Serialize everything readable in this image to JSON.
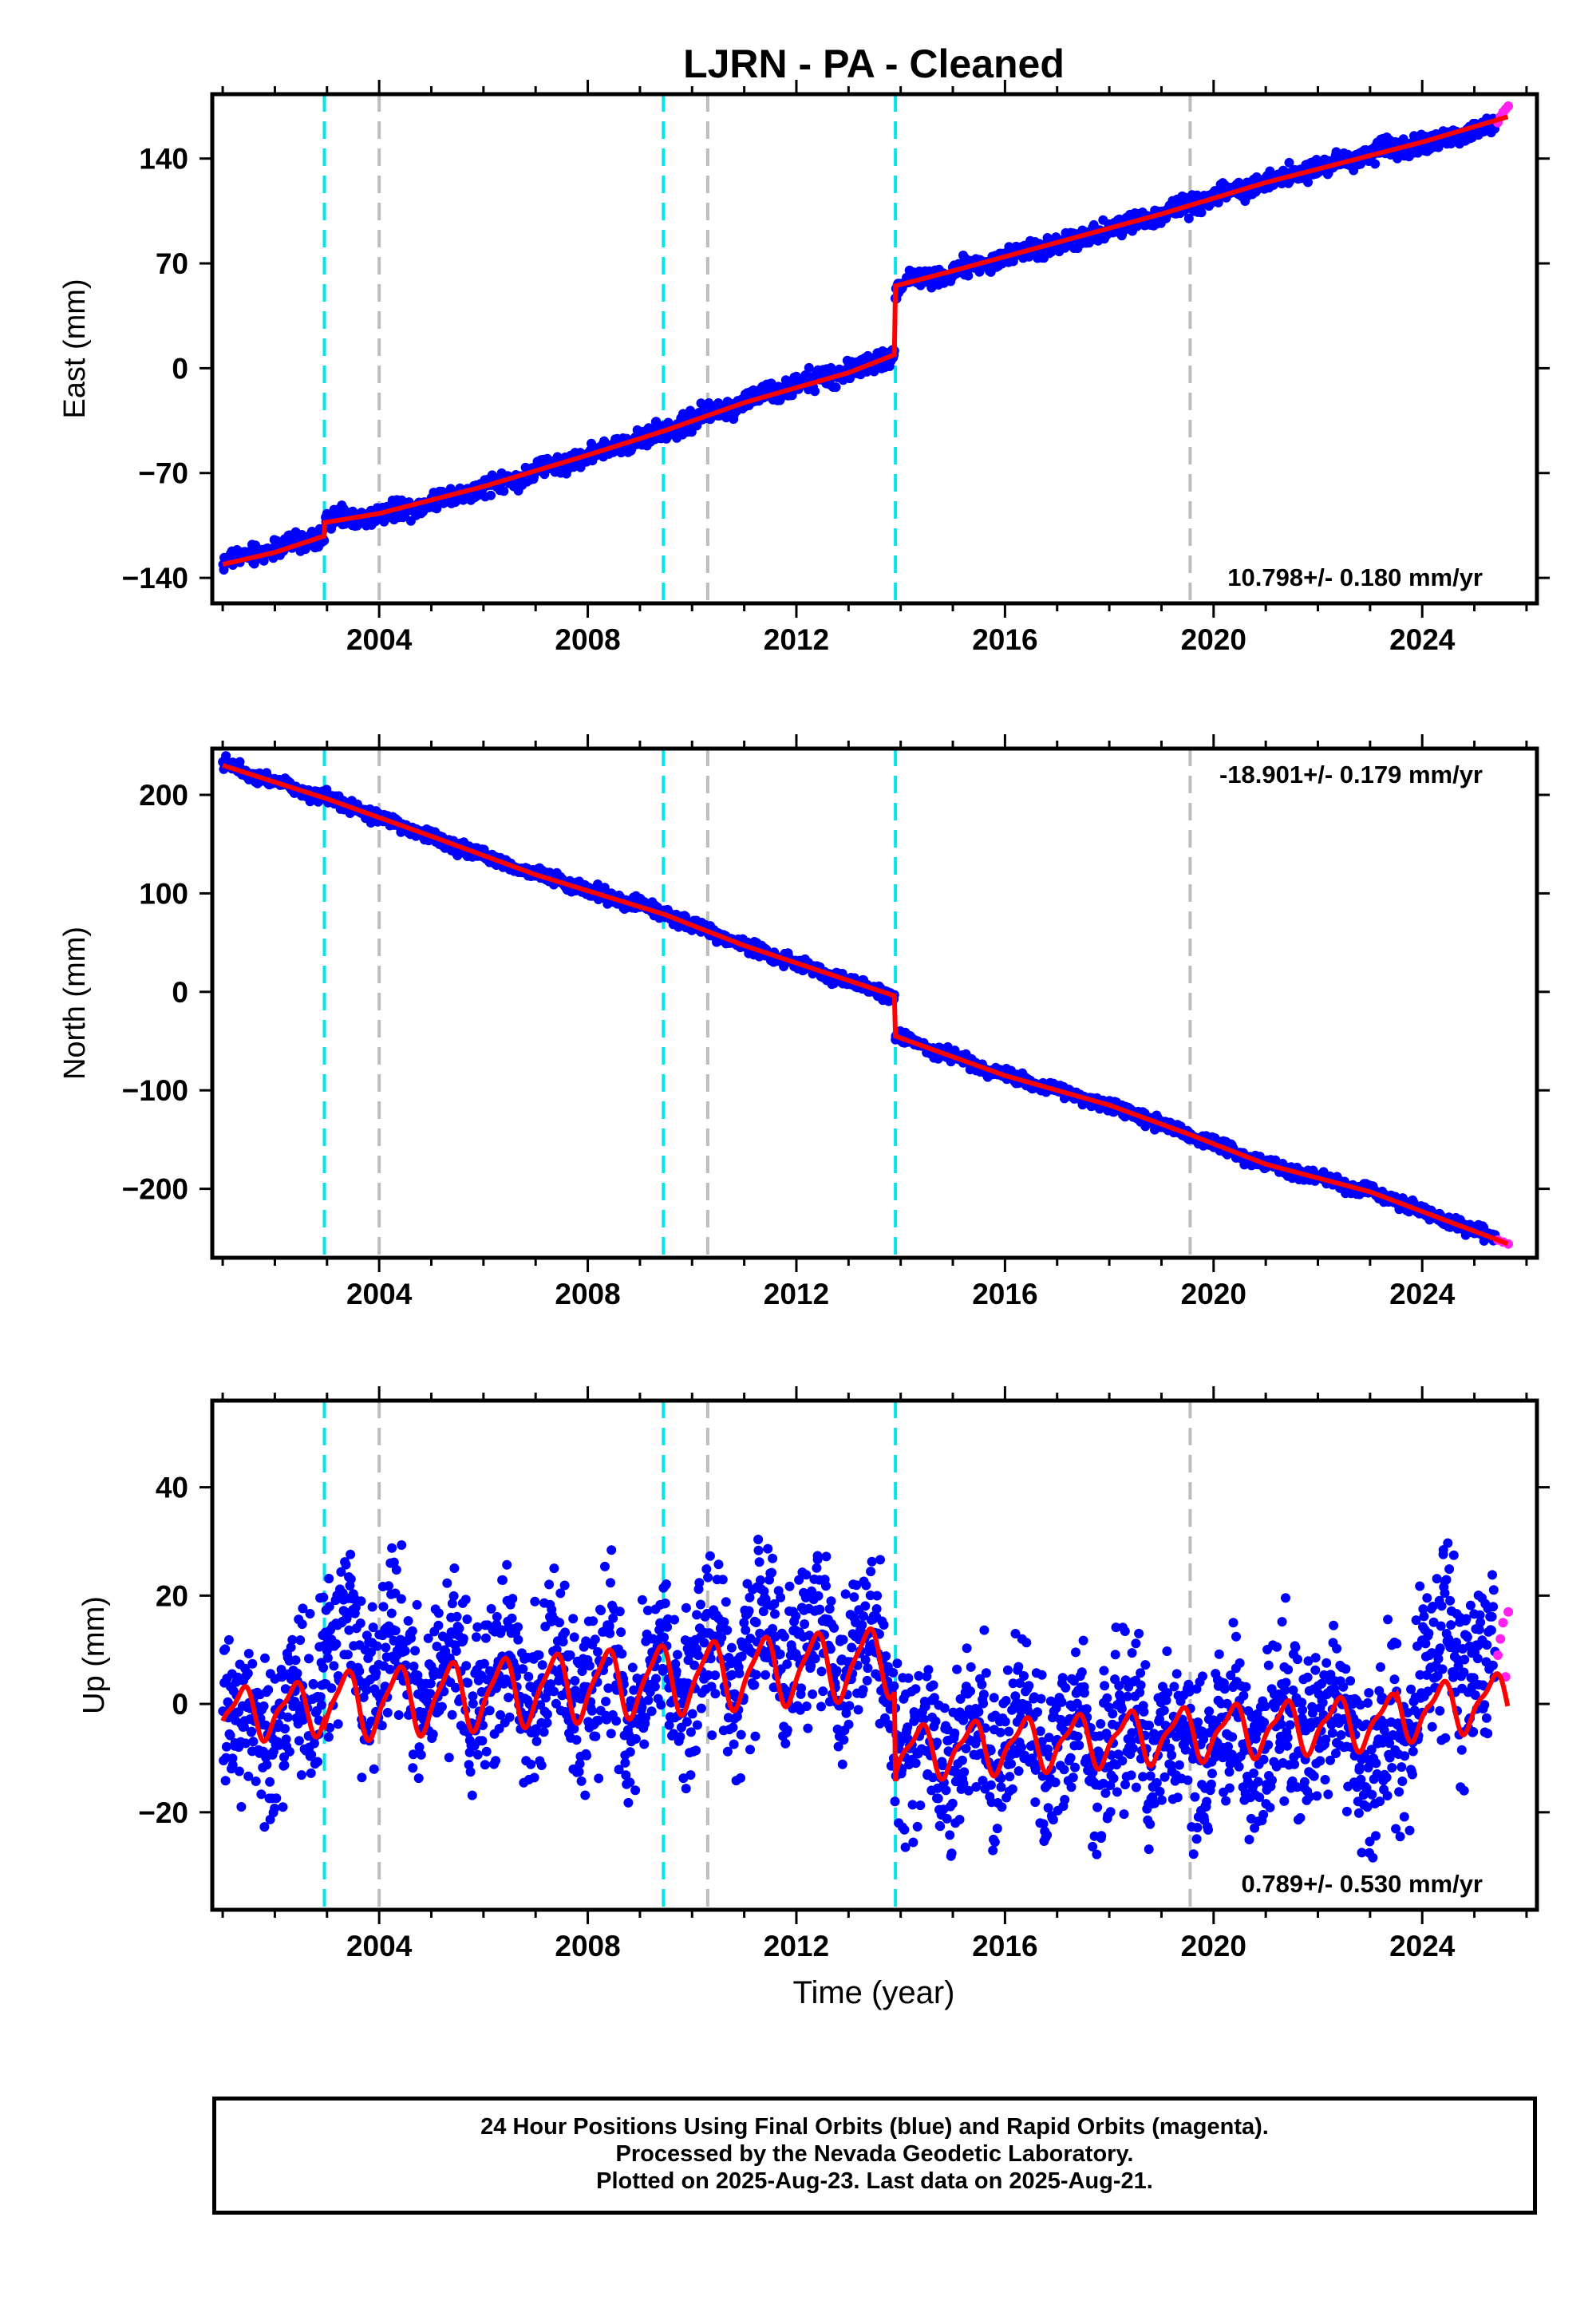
{
  "title": "LJRN  - PA - Cleaned",
  "colors": {
    "final_orbits": "#0000ff",
    "rapid_orbits": "#ff22ee",
    "model": "#ff0000",
    "offset_equipment": "#00e5ee",
    "offset_other": "#bdbdbd"
  },
  "x_axis": {
    "label": "Time (year)",
    "range": [
      2000.8,
      2026.2
    ],
    "ticks": [
      2004,
      2008,
      2012,
      2016,
      2020,
      2024
    ],
    "tick_labels": [
      "2004",
      "2008",
      "2012",
      "2016",
      "2020",
      "2024"
    ]
  },
  "offsets": {
    "cyan": [
      2002.95,
      2009.45,
      2013.9
    ],
    "gray": [
      2004.0,
      2010.3,
      2019.55
    ]
  },
  "footer": {
    "line1": "24 Hour Positions Using Final Orbits (blue) and Rapid Orbits (magenta).",
    "line2": "Processed by the Nevada Geodetic Laboratory.",
    "line3": "Plotted on 2025-Aug-23. Last data on 2025-Aug-21."
  },
  "chart_data": [
    {
      "type": "scatter",
      "component": "east",
      "ylabel": "East (mm)",
      "ylim": [
        -157,
        183
      ],
      "yticks": [
        -140,
        -70,
        0,
        70,
        140
      ],
      "ytick_labels": [
        "−140",
        "−70",
        "0",
        "70",
        "140"
      ],
      "rate_label": "10.798+/- 0.180 mm/yr",
      "rate_position": "bottom-right",
      "series": [
        {
          "name": "Final Orbits",
          "x": [
            2001.0,
            2002.0,
            2002.95,
            2002.96,
            2004.0,
            2006.0,
            2008.0,
            2009.45,
            2011.0,
            2013.0,
            2013.88,
            2013.9,
            2015.0,
            2017.0,
            2019.0,
            2021.0,
            2023.0,
            2024.0,
            2025.4
          ],
          "y": [
            -130,
            -120,
            -112,
            -102,
            -98,
            -80,
            -58,
            -42,
            -22,
            -2,
            8,
            55,
            65,
            83,
            103,
            125,
            143,
            150,
            162
          ]
        },
        {
          "name": "Rapid Orbits",
          "x": [
            2025.45,
            2025.5,
            2025.55,
            2025.6,
            2025.65
          ],
          "y": [
            164,
            168,
            171,
            173,
            175
          ]
        }
      ],
      "model": {
        "x": [
          2001.0,
          2002.0,
          2002.95,
          2002.96,
          2004.0,
          2006.0,
          2008.0,
          2009.45,
          2011.0,
          2013.0,
          2013.88,
          2013.9,
          2015.0,
          2017.0,
          2019.0,
          2021.0,
          2023.0,
          2024.0,
          2025.65
        ],
        "y": [
          -131,
          -123,
          -112,
          -103,
          -97,
          -79,
          -58,
          -42,
          -23,
          -3,
          9,
          55,
          65,
          84,
          103,
          124,
          142,
          151,
          168
        ]
      }
    },
    {
      "type": "scatter",
      "component": "north",
      "ylabel": "North (mm)",
      "ylim": [
        -270,
        247
      ],
      "yticks": [
        -200,
        -100,
        0,
        100,
        200
      ],
      "ytick_labels": [
        "−200",
        "−100",
        "0",
        "100",
        "200"
      ],
      "rate_label": "-18.901+/- 0.179 mm/yr",
      "rate_position": "top-right",
      "series": [
        {
          "name": "Final Orbits",
          "x": [
            2001.0,
            2003.0,
            2005.0,
            2007.0,
            2009.45,
            2011.0,
            2013.88,
            2013.9,
            2016.0,
            2018.0,
            2019.55,
            2021.0,
            2023.0,
            2025.4
          ],
          "y": [
            232,
            196,
            157,
            120,
            80,
            47,
            -5,
            -45,
            -85,
            -115,
            -145,
            -175,
            -203,
            -250
          ]
        },
        {
          "name": "Rapid Orbits",
          "x": [
            2025.45,
            2025.55,
            2025.65
          ],
          "y": [
            -252,
            -254,
            -256
          ]
        }
      ],
      "model": {
        "x": [
          2001.0,
          2003.0,
          2005.0,
          2007.0,
          2009.45,
          2011.0,
          2013.88,
          2013.9,
          2016.0,
          2018.0,
          2019.55,
          2021.0,
          2023.0,
          2025.65
        ],
        "y": [
          230,
          196,
          158,
          119,
          79,
          47,
          -4,
          -45,
          -85,
          -115,
          -145,
          -175,
          -203,
          -256
        ]
      }
    },
    {
      "type": "scatter",
      "component": "up",
      "ylabel": "Up (mm)",
      "ylim": [
        -38,
        56
      ],
      "yticks": [
        -20,
        0,
        20,
        40
      ],
      "ytick_labels": [
        "−20",
        "0",
        "20",
        "40"
      ],
      "rate_label": "0.789+/- 0.530 mm/yr",
      "rate_position": "bottom-right",
      "series": [
        {
          "name": "Final Orbits",
          "x": [
            2001.0,
            2002.5,
            2003.0,
            2005.0,
            2007.0,
            2009.0,
            2010.5,
            2012.0,
            2013.8,
            2014.0,
            2016.0,
            2018.0,
            2020.0,
            2022.0,
            2023.5,
            2024.0,
            2025.4
          ],
          "y": [
            -5,
            -2,
            10,
            5,
            4,
            3,
            9,
            11,
            10,
            -8,
            -7,
            -6,
            -7,
            -3,
            -10,
            8,
            9
          ]
        },
        {
          "name": "Rapid Orbits",
          "x": [
            2025.45,
            2025.5,
            2025.55,
            2025.6,
            2025.65
          ],
          "y": [
            9,
            12,
            15,
            5,
            17
          ]
        }
      ],
      "model": {
        "x": [
          2001.0,
          2013.88,
          2013.9,
          2023.5,
          2023.51,
          2025.65
        ],
        "y": [
          -2,
          8,
          -9,
          -3,
          -2,
          1
        ]
      }
    }
  ]
}
